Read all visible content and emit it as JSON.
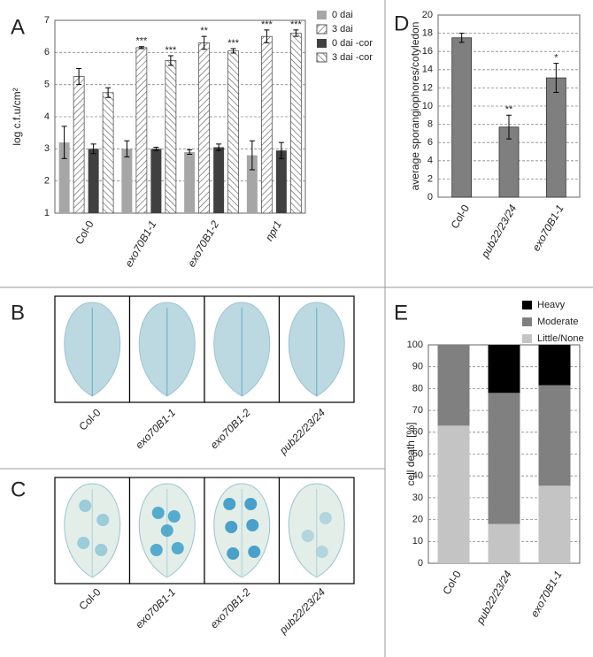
{
  "chart_data": [
    {
      "panel": "A",
      "type": "bar",
      "ylabel": "log c.f.u/cm²",
      "categories": [
        "Col-0",
        "exo70B1-1",
        "exo70B1-2",
        "npr1"
      ],
      "series": [
        {
          "name": "0 dai",
          "color": "#a6a6a6",
          "pattern": null,
          "values": [
            3.2,
            3.0,
            2.9,
            2.8
          ],
          "errors": [
            0.5,
            0.25,
            0.07,
            0.45
          ],
          "significance": [
            null,
            null,
            null,
            null
          ]
        },
        {
          "name": "3 dai",
          "color": "#ffffff",
          "pattern": "up",
          "values": [
            5.25,
            6.15,
            6.3,
            6.5
          ],
          "errors": [
            0.25,
            0.03,
            0.2,
            0.2
          ],
          "significance": [
            null,
            "***",
            "**",
            "***"
          ]
        },
        {
          "name": "0 dai -cor",
          "color": "#404040",
          "pattern": null,
          "values": [
            3.0,
            3.0,
            3.05,
            2.95
          ],
          "errors": [
            0.15,
            0.05,
            0.1,
            0.25
          ],
          "significance": [
            null,
            null,
            null,
            null
          ]
        },
        {
          "name": "3 dai -cor",
          "color": "#ffffff",
          "pattern": "down",
          "values": [
            4.75,
            5.75,
            6.05,
            6.6
          ],
          "errors": [
            0.15,
            0.15,
            0.07,
            0.1
          ],
          "significance": [
            null,
            "***",
            "***",
            "***"
          ]
        }
      ],
      "ylim": [
        1,
        7
      ],
      "yticks": [
        1,
        2,
        3,
        4,
        5,
        6,
        7
      ],
      "grid": true,
      "legend": "upper right"
    },
    {
      "panel": "D",
      "type": "bar",
      "ylabel": "average sporangiophores/cotyledon",
      "categories": [
        "Col-0",
        "pub22/23/24",
        "exo70B1-1"
      ],
      "color": "#7f7f7f",
      "values": [
        17.5,
        7.7,
        13.1
      ],
      "errors": [
        0.5,
        1.3,
        1.6
      ],
      "significance": [
        null,
        "**",
        "*"
      ],
      "ylim": [
        0,
        20
      ],
      "yticks": [
        0,
        2,
        4,
        6,
        8,
        10,
        12,
        14,
        16,
        18,
        20
      ],
      "grid": true
    },
    {
      "panel": "E",
      "type": "stacked_bar",
      "ylabel": "cell death [%]",
      "categories": [
        "Col-0",
        "pub22/23/24",
        "exo70B1-1"
      ],
      "series": [
        {
          "name": "Little/None",
          "color": "#c4c4c4",
          "values": [
            63,
            18,
            35.5
          ]
        },
        {
          "name": "Moderate",
          "color": "#808080",
          "values": [
            37,
            60,
            46
          ]
        },
        {
          "name": "Heavy",
          "color": "#000000",
          "values": [
            0,
            22,
            18.5
          ]
        }
      ],
      "ylim": [
        0,
        100
      ],
      "yticks": [
        0,
        10,
        20,
        30,
        40,
        50,
        60,
        70,
        80,
        90,
        100
      ],
      "grid": true,
      "legend": "top"
    }
  ],
  "images": [
    {
      "panel": "B",
      "labels": [
        "Col-0",
        "exo70B1-1",
        "exo70B1-2",
        "pub22/23/24"
      ]
    },
    {
      "panel": "C",
      "labels": [
        "Col-0",
        "exo70B1-1",
        "exo70B1-2",
        "pub22/23/24"
      ]
    }
  ]
}
